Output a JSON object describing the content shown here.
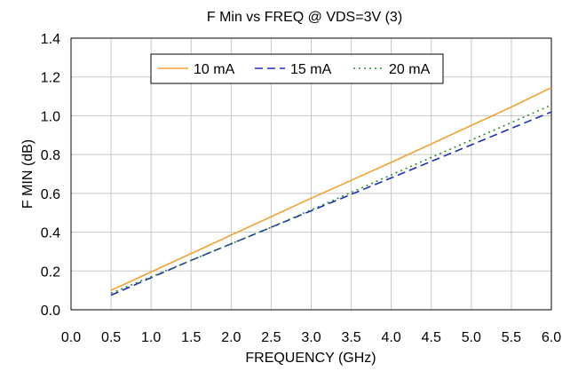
{
  "chart_data": {
    "type": "line",
    "title": "F Min vs FREQ @ VDS=3V (3)",
    "xlabel": "FREQUENCY (GHz)",
    "ylabel": "F MIN (dB)",
    "xlim": [
      0.0,
      6.0
    ],
    "ylim": [
      0.0,
      1.4
    ],
    "xticks": [
      "0.0",
      "0.5",
      "1.0",
      "1.5",
      "2.0",
      "2.5",
      "3.0",
      "3.5",
      "4.0",
      "4.5",
      "5.0",
      "5.5",
      "6.0"
    ],
    "yticks": [
      "0.0",
      "0.2",
      "0.4",
      "0.6",
      "0.8",
      "1.0",
      "1.2",
      "1.4"
    ],
    "grid": true,
    "legend_position": "top-center",
    "series": [
      {
        "name": "10 mA",
        "color": "#f5a031",
        "dash": "solid",
        "x": [
          0.5,
          1.0,
          1.5,
          2.0,
          2.5,
          3.0,
          3.5,
          4.0,
          4.5,
          5.0,
          5.5,
          6.0
        ],
        "y": [
          0.1,
          0.195,
          0.29,
          0.385,
          0.48,
          0.575,
          0.667,
          0.76,
          0.855,
          0.95,
          1.045,
          1.145
        ]
      },
      {
        "name": "15 mA",
        "color": "#1a2fbf",
        "dash": "dash",
        "x": [
          0.5,
          1.0,
          1.5,
          2.0,
          2.5,
          3.0,
          3.5,
          4.0,
          4.5,
          5.0,
          5.5,
          6.0
        ],
        "y": [
          0.075,
          0.165,
          0.255,
          0.34,
          0.425,
          0.51,
          0.595,
          0.68,
          0.765,
          0.85,
          0.935,
          1.02
        ]
      },
      {
        "name": "20 mA",
        "color": "#2a8a2a",
        "dash": "dot",
        "x": [
          0.5,
          1.0,
          1.5,
          2.0,
          2.5,
          3.0,
          3.5,
          4.0,
          4.5,
          5.0,
          5.5,
          6.0
        ],
        "y": [
          0.085,
          0.17,
          0.255,
          0.34,
          0.425,
          0.515,
          0.605,
          0.695,
          0.785,
          0.875,
          0.965,
          1.055
        ]
      }
    ]
  }
}
